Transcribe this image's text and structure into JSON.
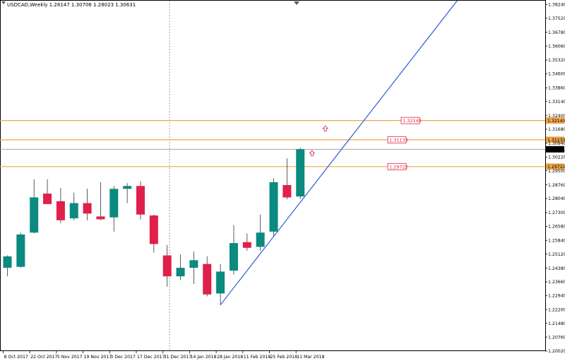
{
  "header": {
    "symbol_info": "USDCAD,Weekly  1.28147 1.30706 1.28023 1.30631"
  },
  "colors": {
    "bull": "#0b8a80",
    "bear": "#e0204a",
    "wick": "#333333",
    "trendline": "#2f5bd3",
    "hline": "#f0a64a",
    "hline_label_border": "#e0204a",
    "hline_label_text": "#e0204a",
    "marker": "#e0204a",
    "current_price_bg": "#000000",
    "current_price_text": "#ffffff",
    "axis": "#000000",
    "grid_vline": "#888888"
  },
  "chart_data": {
    "type": "candlestick",
    "x_axis_labels": [
      "8 Oct 2017",
      "22 Oct 2017",
      "5 Nov 2017",
      "19 Nov 2017",
      "3 Dec 2017",
      "17 Dec 2017",
      "31 Dec 2017",
      "14 Jan 2018",
      "28 Jan 2018",
      "11 Feb 2018",
      "25 Feb 2018",
      "11 Mar 2018"
    ],
    "y_axis_labels": [
      "1.38240",
      "1.37520",
      "1.36780",
      "1.36060",
      "1.35320",
      "1.34600",
      "1.33860",
      "1.33140",
      "1.32400",
      "1.31680",
      "1.30940",
      "1.30220",
      "1.29500",
      "1.28760",
      "1.28040",
      "1.27300",
      "1.26580",
      "1.25840",
      "1.25120",
      "1.24380",
      "1.23660",
      "1.22940",
      "1.22200",
      "1.21480",
      "1.20760",
      "1.20020"
    ],
    "ylim": [
      1.2002,
      1.3844
    ],
    "candles": [
      {
        "o": 1.244,
        "h": 1.2505,
        "l": 1.2395,
        "c": 1.25
      },
      {
        "o": 1.2445,
        "h": 1.2625,
        "l": 1.244,
        "c": 1.2615
      },
      {
        "o": 1.2625,
        "h": 1.2905,
        "l": 1.262,
        "c": 1.281
      },
      {
        "o": 1.283,
        "h": 1.2905,
        "l": 1.2775,
        "c": 1.2775
      },
      {
        "o": 1.279,
        "h": 1.286,
        "l": 1.2675,
        "c": 1.269
      },
      {
        "o": 1.27,
        "h": 1.2835,
        "l": 1.269,
        "c": 1.278
      },
      {
        "o": 1.278,
        "h": 1.2855,
        "l": 1.269,
        "c": 1.2725
      },
      {
        "o": 1.271,
        "h": 1.289,
        "l": 1.269,
        "c": 1.2695
      },
      {
        "o": 1.2705,
        "h": 1.287,
        "l": 1.263,
        "c": 1.2855
      },
      {
        "o": 1.2855,
        "h": 1.2885,
        "l": 1.278,
        "c": 1.287
      },
      {
        "o": 1.287,
        "h": 1.2895,
        "l": 1.2695,
        "c": 1.272
      },
      {
        "o": 1.2715,
        "h": 1.272,
        "l": 1.252,
        "c": 1.2565
      },
      {
        "o": 1.2505,
        "h": 1.256,
        "l": 1.234,
        "c": 1.2395
      },
      {
        "o": 1.2395,
        "h": 1.251,
        "l": 1.2375,
        "c": 1.244
      },
      {
        "o": 1.244,
        "h": 1.2525,
        "l": 1.2355,
        "c": 1.248
      },
      {
        "o": 1.246,
        "h": 1.25,
        "l": 1.229,
        "c": 1.23
      },
      {
        "o": 1.2305,
        "h": 1.246,
        "l": 1.2245,
        "c": 1.242
      },
      {
        "o": 1.2425,
        "h": 1.2665,
        "l": 1.2405,
        "c": 1.257
      },
      {
        "o": 1.2575,
        "h": 1.262,
        "l": 1.253,
        "c": 1.2545
      },
      {
        "o": 1.255,
        "h": 1.272,
        "l": 1.253,
        "c": 1.2625
      },
      {
        "o": 1.263,
        "h": 1.291,
        "l": 1.2605,
        "c": 1.289
      },
      {
        "o": 1.2875,
        "h": 1.3015,
        "l": 1.28,
        "c": 1.281
      },
      {
        "o": 1.2815,
        "h": 1.3071,
        "l": 1.2802,
        "c": 1.3063
      }
    ],
    "horizontal_levels": [
      {
        "price": 1.3214,
        "label": "1.32143",
        "axis_label": "1.32143"
      },
      {
        "price": 1.3113,
        "label": "1.31133",
        "axis_label": "1.31133"
      },
      {
        "price": 1.2972,
        "label": "1.29722",
        "axis_label": "1.29722"
      }
    ],
    "current_price": "1.30631",
    "trendline": {
      "x_start_index": 16,
      "y_start": 1.2245,
      "x_end_index": 34.1,
      "y_end": 1.3844
    },
    "period_separator_index": 12.5,
    "markers": [
      {
        "index": 24.2,
        "price": 1.3172
      },
      {
        "index": 23.2,
        "price": 1.3042
      }
    ]
  }
}
